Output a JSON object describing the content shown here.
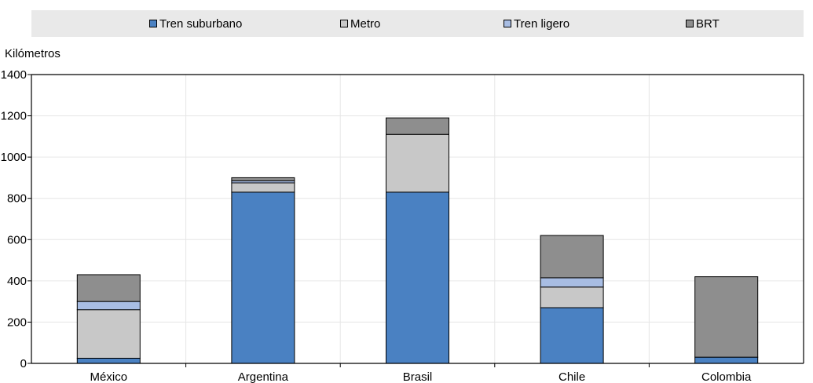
{
  "chart_data": {
    "type": "bar",
    "stacked": true,
    "ylabel": "Kilómetros",
    "ylim": [
      0,
      1400
    ],
    "yticks": [
      0,
      200,
      400,
      600,
      800,
      1000,
      1200,
      1400
    ],
    "grid": true,
    "legend_position": "top",
    "categories": [
      "México",
      "Argentina",
      "Brasil",
      "Chile",
      "Colombia"
    ],
    "series": [
      {
        "name": "Tren suburbano",
        "color": "#4a81c2",
        "values": [
          25,
          830,
          830,
          270,
          30
        ]
      },
      {
        "name": "Metro",
        "color": "#c8c8c8",
        "values": [
          235,
          45,
          280,
          100,
          0
        ]
      },
      {
        "name": "Tren ligero",
        "color": "#a8bde3",
        "values": [
          40,
          10,
          0,
          45,
          0
        ]
      },
      {
        "name": "BRT",
        "color": "#8e8e8e",
        "values": [
          130,
          15,
          80,
          205,
          390
        ]
      }
    ]
  }
}
